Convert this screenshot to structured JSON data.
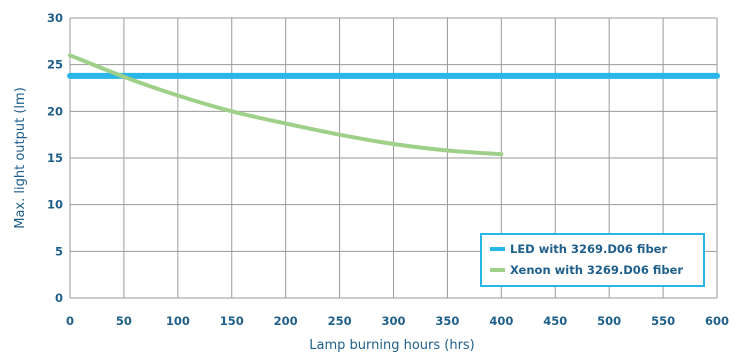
{
  "chart_data": {
    "type": "line",
    "title": "",
    "xlabel": "Lamp burning hours (hrs)",
    "ylabel": "Max. light output (lm)",
    "xlim": [
      0,
      600
    ],
    "ylim": [
      0,
      30
    ],
    "xticks": [
      0,
      50,
      100,
      150,
      200,
      250,
      300,
      350,
      400,
      450,
      500,
      550,
      600
    ],
    "yticks": [
      0,
      5,
      10,
      15,
      20,
      25,
      30
    ],
    "grid": true,
    "legend_position": "bottom-right",
    "series": [
      {
        "name": "LED with 3269.D06 fiber",
        "color": "#29b6e8",
        "x": [
          0,
          600
        ],
        "y": [
          23.8,
          23.8
        ]
      },
      {
        "name": "Xenon with 3269.D06 fiber",
        "color": "#9fd08a",
        "x": [
          0,
          50,
          100,
          150,
          200,
          250,
          300,
          350,
          400
        ],
        "y": [
          26,
          23.7,
          21.7,
          20,
          18.7,
          17.5,
          16.5,
          15.8,
          15.4
        ]
      }
    ]
  }
}
